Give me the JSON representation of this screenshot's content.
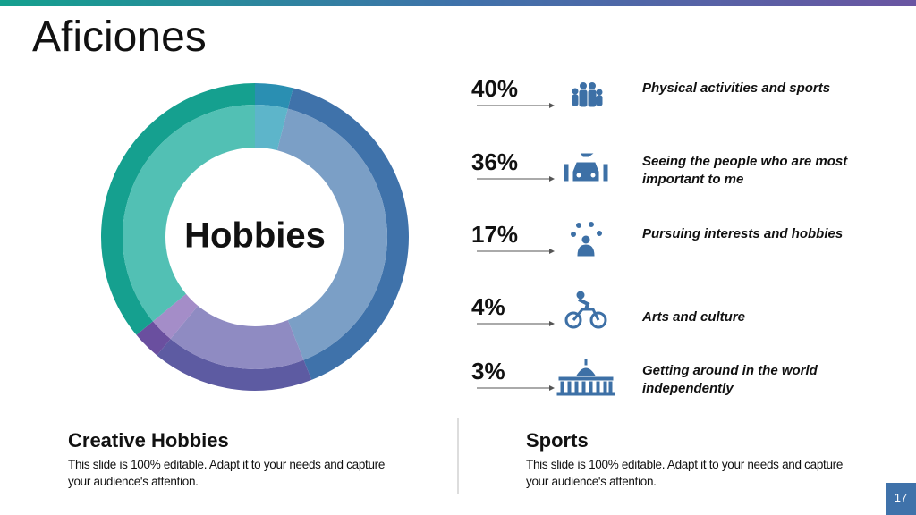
{
  "title": "Aficiones",
  "chart_data": {
    "type": "donut",
    "center_label": "Hobbies",
    "categories": [
      "Physical activities and sports",
      "Seeing the people who are most important to me",
      "Pursuing interests and hobbies",
      "Arts and culture",
      "Getting around in the world independently"
    ],
    "values": [
      40,
      36,
      17,
      4,
      3
    ],
    "value_labels": [
      "40%",
      "36%",
      "17%",
      "4%",
      "3%"
    ],
    "colors": [
      "#3f72aa",
      "#15a08f",
      "#5d5ba2",
      "#2a8fb2",
      "#6a4f9f"
    ],
    "inner_colors": [
      "#7b9fc6",
      "#52c0b4",
      "#8f8bc2",
      "#5db5ca",
      "#a48dc8"
    ]
  },
  "sections": [
    {
      "title": "Creative Hobbies",
      "text": "This slide is 100% editable. Adapt it to your needs and capture your audience's attention."
    },
    {
      "title": "Sports",
      "text": "This slide is 100% editable. Adapt it to your needs and capture your audience's attention."
    }
  ],
  "page_number": "17"
}
